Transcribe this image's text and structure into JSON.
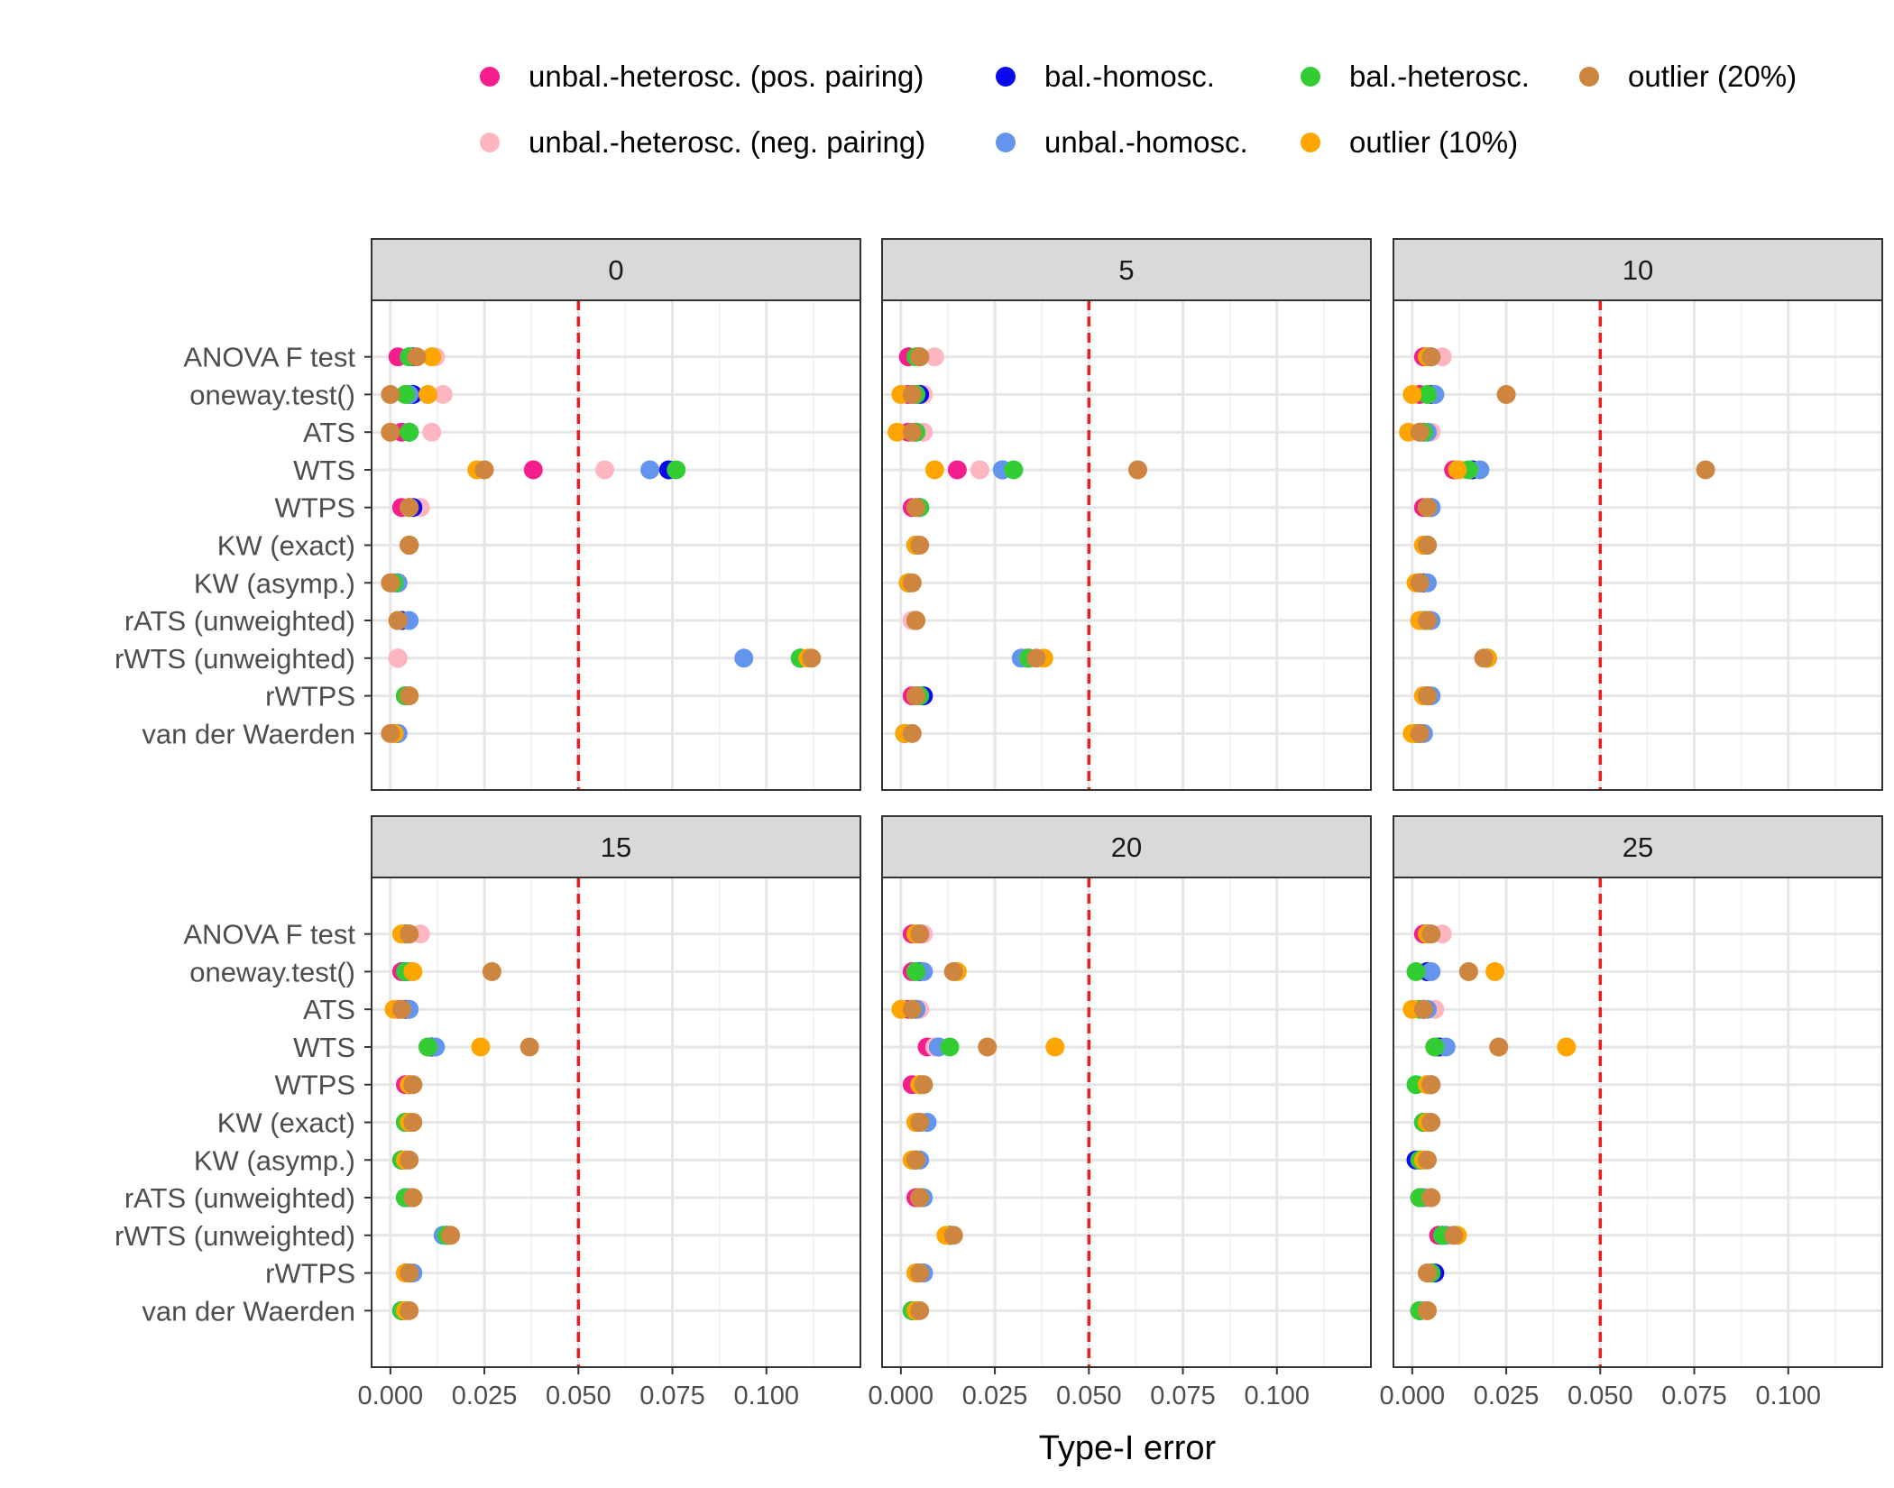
{
  "chart_data": {
    "type": "scatter",
    "xlabel": "Type-I error",
    "ylabel": "",
    "xlim": [
      -0.005,
      0.125
    ],
    "x_ticks": [
      0.0,
      0.025,
      0.05,
      0.075,
      0.1
    ],
    "x_tick_labels": [
      "0.000",
      "0.025",
      "0.050",
      "0.075",
      "0.100"
    ],
    "grid": true,
    "legend_position": "top",
    "reference_line": {
      "x": 0.05,
      "style": "dashed",
      "color": "#ee1c1c"
    },
    "methods": [
      "ANOVA F test",
      "oneway.test()",
      "ATS",
      "WTS",
      "WTPS",
      "KW (exact)",
      "KW (asymp.)",
      "rATS (unweighted)",
      "rWTS (unweighted)",
      "rWTPS",
      "van der Waerden"
    ],
    "series": [
      {
        "key": "pos",
        "name": "unbal.-heterosc. (pos. pairing)",
        "color": "#f51e8c"
      },
      {
        "key": "neg",
        "name": "unbal.-heterosc. (neg. pairing)",
        "color": "#ffb6c1"
      },
      {
        "key": "balh",
        "name": "bal.-homosc.",
        "color": "#0a0aee"
      },
      {
        "key": "unbh",
        "name": "unbal.-homosc.",
        "color": "#6495ed"
      },
      {
        "key": "balhet",
        "name": "bal.-heterosc.",
        "color": "#32cd32"
      },
      {
        "key": "o10",
        "name": "outlier (10%)",
        "color": "#ffa500"
      },
      {
        "key": "o20",
        "name": "outlier (20%)",
        "color": "#cd853f"
      }
    ],
    "panels": [
      {
        "label": "0",
        "values": {
          "pos": [
            0.002,
            0.005,
            0.003,
            0.038,
            0.003,
            0.005,
            0.001,
            0.002,
            0.002,
            0.004,
            0.001
          ],
          "neg": [
            0.012,
            0.014,
            0.011,
            0.057,
            0.008,
            0.005,
            0.001,
            0.002,
            0.002,
            0.004,
            0.001
          ],
          "balh": [
            0.006,
            0.006,
            0.005,
            0.074,
            0.006,
            0.005,
            0.002,
            0.003,
            0.109,
            0.004,
            0.002
          ],
          "unbh": [
            0.005,
            0.005,
            0.005,
            0.069,
            0.005,
            0.005,
            0.002,
            0.005,
            0.094,
            0.004,
            0.002
          ],
          "balhet": [
            0.005,
            0.004,
            0.005,
            0.076,
            0.005,
            0.005,
            0.001,
            0.002,
            0.109,
            0.004,
            0.001
          ],
          "o10": [
            0.011,
            0.01,
            0.0,
            0.023,
            0.005,
            0.005,
            0.0,
            0.002,
            0.111,
            0.005,
            0.001
          ],
          "o20": [
            0.007,
            0.0,
            0.0,
            0.025,
            0.005,
            0.005,
            0.0,
            0.002,
            0.112,
            0.005,
            0.0
          ]
        }
      },
      {
        "label": "5",
        "values": {
          "pos": [
            0.002,
            0.002,
            0.002,
            0.015,
            0.003,
            0.004,
            0.002,
            0.003,
            0.033,
            0.003,
            0.001
          ],
          "neg": [
            0.009,
            0.006,
            0.006,
            0.021,
            0.005,
            0.004,
            0.002,
            0.003,
            0.033,
            0.004,
            0.001
          ],
          "balh": [
            0.005,
            0.005,
            0.004,
            0.027,
            0.005,
            0.004,
            0.002,
            0.004,
            0.034,
            0.006,
            0.001
          ],
          "unbh": [
            0.005,
            0.004,
            0.004,
            0.027,
            0.005,
            0.004,
            0.002,
            0.004,
            0.032,
            0.005,
            0.001
          ],
          "balhet": [
            0.004,
            0.004,
            0.004,
            0.03,
            0.005,
            0.004,
            0.002,
            0.004,
            0.034,
            0.005,
            0.001
          ],
          "o10": [
            0.005,
            0.0,
            -0.001,
            0.009,
            0.004,
            0.004,
            0.002,
            0.004,
            0.038,
            0.004,
            0.001
          ],
          "o20": [
            0.005,
            0.003,
            0.003,
            0.063,
            0.004,
            0.005,
            0.003,
            0.004,
            0.036,
            0.004,
            0.003
          ]
        }
      },
      {
        "label": "10",
        "values": {
          "pos": [
            0.003,
            0.002,
            0.002,
            0.011,
            0.003,
            0.003,
            0.002,
            0.002,
            0.02,
            0.003,
            0.001
          ],
          "neg": [
            0.008,
            0.006,
            0.005,
            0.013,
            0.005,
            0.004,
            0.002,
            0.003,
            0.02,
            0.004,
            0.001
          ],
          "balh": [
            0.005,
            0.005,
            0.003,
            0.016,
            0.005,
            0.004,
            0.003,
            0.004,
            0.02,
            0.004,
            0.002
          ],
          "unbh": [
            0.005,
            0.006,
            0.004,
            0.018,
            0.005,
            0.004,
            0.004,
            0.005,
            0.02,
            0.005,
            0.003
          ],
          "balhet": [
            0.004,
            0.004,
            0.003,
            0.015,
            0.004,
            0.004,
            0.002,
            0.003,
            0.02,
            0.004,
            0.001
          ],
          "o10": [
            0.004,
            0.0,
            -0.001,
            0.012,
            0.004,
            0.003,
            0.001,
            0.002,
            0.02,
            0.003,
            0.0
          ],
          "o20": [
            0.005,
            0.025,
            0.002,
            0.078,
            0.004,
            0.004,
            0.002,
            0.004,
            0.019,
            0.004,
            0.002
          ]
        }
      },
      {
        "label": "15",
        "values": {
          "pos": [
            0.004,
            0.003,
            0.002,
            0.01,
            0.004,
            0.004,
            0.003,
            0.004,
            0.015,
            0.004,
            0.003
          ],
          "neg": [
            0.008,
            0.004,
            0.005,
            0.011,
            0.005,
            0.005,
            0.004,
            0.005,
            0.015,
            0.005,
            0.004
          ],
          "balh": [
            0.004,
            0.004,
            0.004,
            0.011,
            0.005,
            0.004,
            0.003,
            0.004,
            0.015,
            0.005,
            0.003
          ],
          "unbh": [
            0.005,
            0.005,
            0.005,
            0.012,
            0.005,
            0.005,
            0.004,
            0.005,
            0.014,
            0.006,
            0.004
          ],
          "balhet": [
            0.004,
            0.004,
            0.003,
            0.01,
            0.005,
            0.004,
            0.003,
            0.004,
            0.015,
            0.005,
            0.003
          ],
          "o10": [
            0.003,
            0.006,
            0.001,
            0.024,
            0.005,
            0.005,
            0.004,
            0.006,
            0.016,
            0.004,
            0.004
          ],
          "o20": [
            0.005,
            0.027,
            0.003,
            0.037,
            0.006,
            0.006,
            0.005,
            0.006,
            0.016,
            0.005,
            0.005
          ]
        }
      },
      {
        "label": "20",
        "values": {
          "pos": [
            0.003,
            0.003,
            0.002,
            0.007,
            0.003,
            0.004,
            0.003,
            0.004,
            0.013,
            0.004,
            0.003
          ],
          "neg": [
            0.006,
            0.004,
            0.005,
            0.009,
            0.005,
            0.005,
            0.004,
            0.005,
            0.013,
            0.005,
            0.004
          ],
          "balh": [
            0.005,
            0.005,
            0.004,
            0.01,
            0.005,
            0.005,
            0.004,
            0.005,
            0.013,
            0.006,
            0.003
          ],
          "unbh": [
            0.005,
            0.006,
            0.004,
            0.01,
            0.006,
            0.007,
            0.005,
            0.006,
            0.013,
            0.006,
            0.004
          ],
          "balhet": [
            0.004,
            0.004,
            0.003,
            0.013,
            0.005,
            0.005,
            0.004,
            0.005,
            0.013,
            0.005,
            0.003
          ],
          "o10": [
            0.004,
            0.015,
            0.0,
            0.041,
            0.005,
            0.004,
            0.003,
            0.005,
            0.012,
            0.004,
            0.004
          ],
          "o20": [
            0.005,
            0.014,
            0.003,
            0.023,
            0.006,
            0.005,
            0.004,
            0.005,
            0.014,
            0.005,
            0.005
          ]
        }
      },
      {
        "label": "25",
        "values": {
          "pos": [
            0.003,
            0.004,
            0.003,
            0.006,
            0.004,
            0.003,
            0.002,
            0.003,
            0.007,
            0.005,
            0.002
          ],
          "neg": [
            0.008,
            0.005,
            0.006,
            0.008,
            0.005,
            0.004,
            0.003,
            0.004,
            0.009,
            0.005,
            0.003
          ],
          "balh": [
            0.004,
            0.004,
            0.003,
            0.007,
            0.005,
            0.003,
            0.001,
            0.002,
            0.008,
            0.006,
            0.002
          ],
          "unbh": [
            0.005,
            0.005,
            0.004,
            0.009,
            0.005,
            0.004,
            0.002,
            0.003,
            0.009,
            0.005,
            0.002
          ],
          "balhet": [
            0.004,
            0.001,
            0.002,
            0.006,
            0.001,
            0.003,
            0.002,
            0.002,
            0.008,
            0.005,
            0.002
          ],
          "o10": [
            0.004,
            0.022,
            0.0,
            0.041,
            0.004,
            0.004,
            0.003,
            0.005,
            0.012,
            0.004,
            0.004
          ],
          "o20": [
            0.005,
            0.015,
            0.003,
            0.023,
            0.005,
            0.005,
            0.004,
            0.005,
            0.011,
            0.004,
            0.004
          ]
        }
      }
    ]
  }
}
